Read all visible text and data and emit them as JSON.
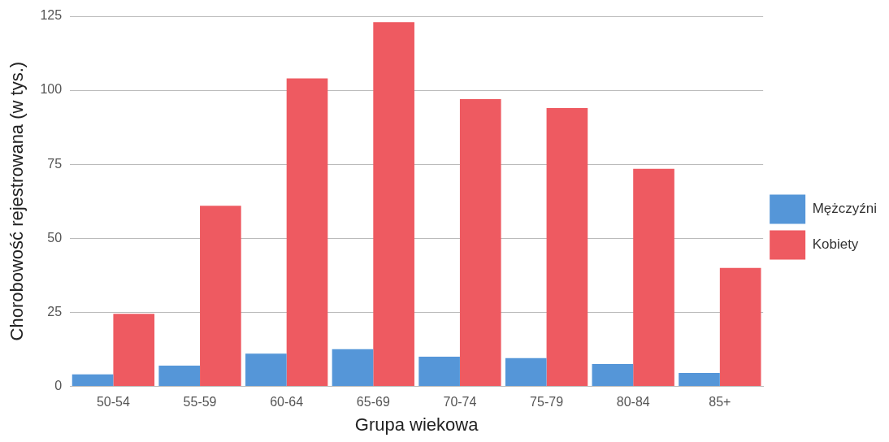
{
  "chart_data": {
    "type": "bar",
    "xlabel": "Grupa wiekowa",
    "ylabel": "Chorobowość rejestrowana (w tys.)",
    "categories": [
      "50-54",
      "55-59",
      "60-64",
      "65-69",
      "70-74",
      "75-79",
      "80-84",
      "85+"
    ],
    "series": [
      {
        "name": "Mężczyźni",
        "color": "#5596d8",
        "values": [
          4,
          7,
          11,
          12.5,
          10,
          9.5,
          7.5,
          4.5
        ]
      },
      {
        "name": "Kobiety",
        "color": "#ee5a61",
        "values": [
          24.5,
          61,
          104,
          123,
          97,
          94,
          73.5,
          40
        ]
      }
    ],
    "ylim": [
      0,
      125
    ],
    "yticks": [
      0,
      25,
      50,
      75,
      100,
      125
    ],
    "grid": "y",
    "legend": "right"
  }
}
